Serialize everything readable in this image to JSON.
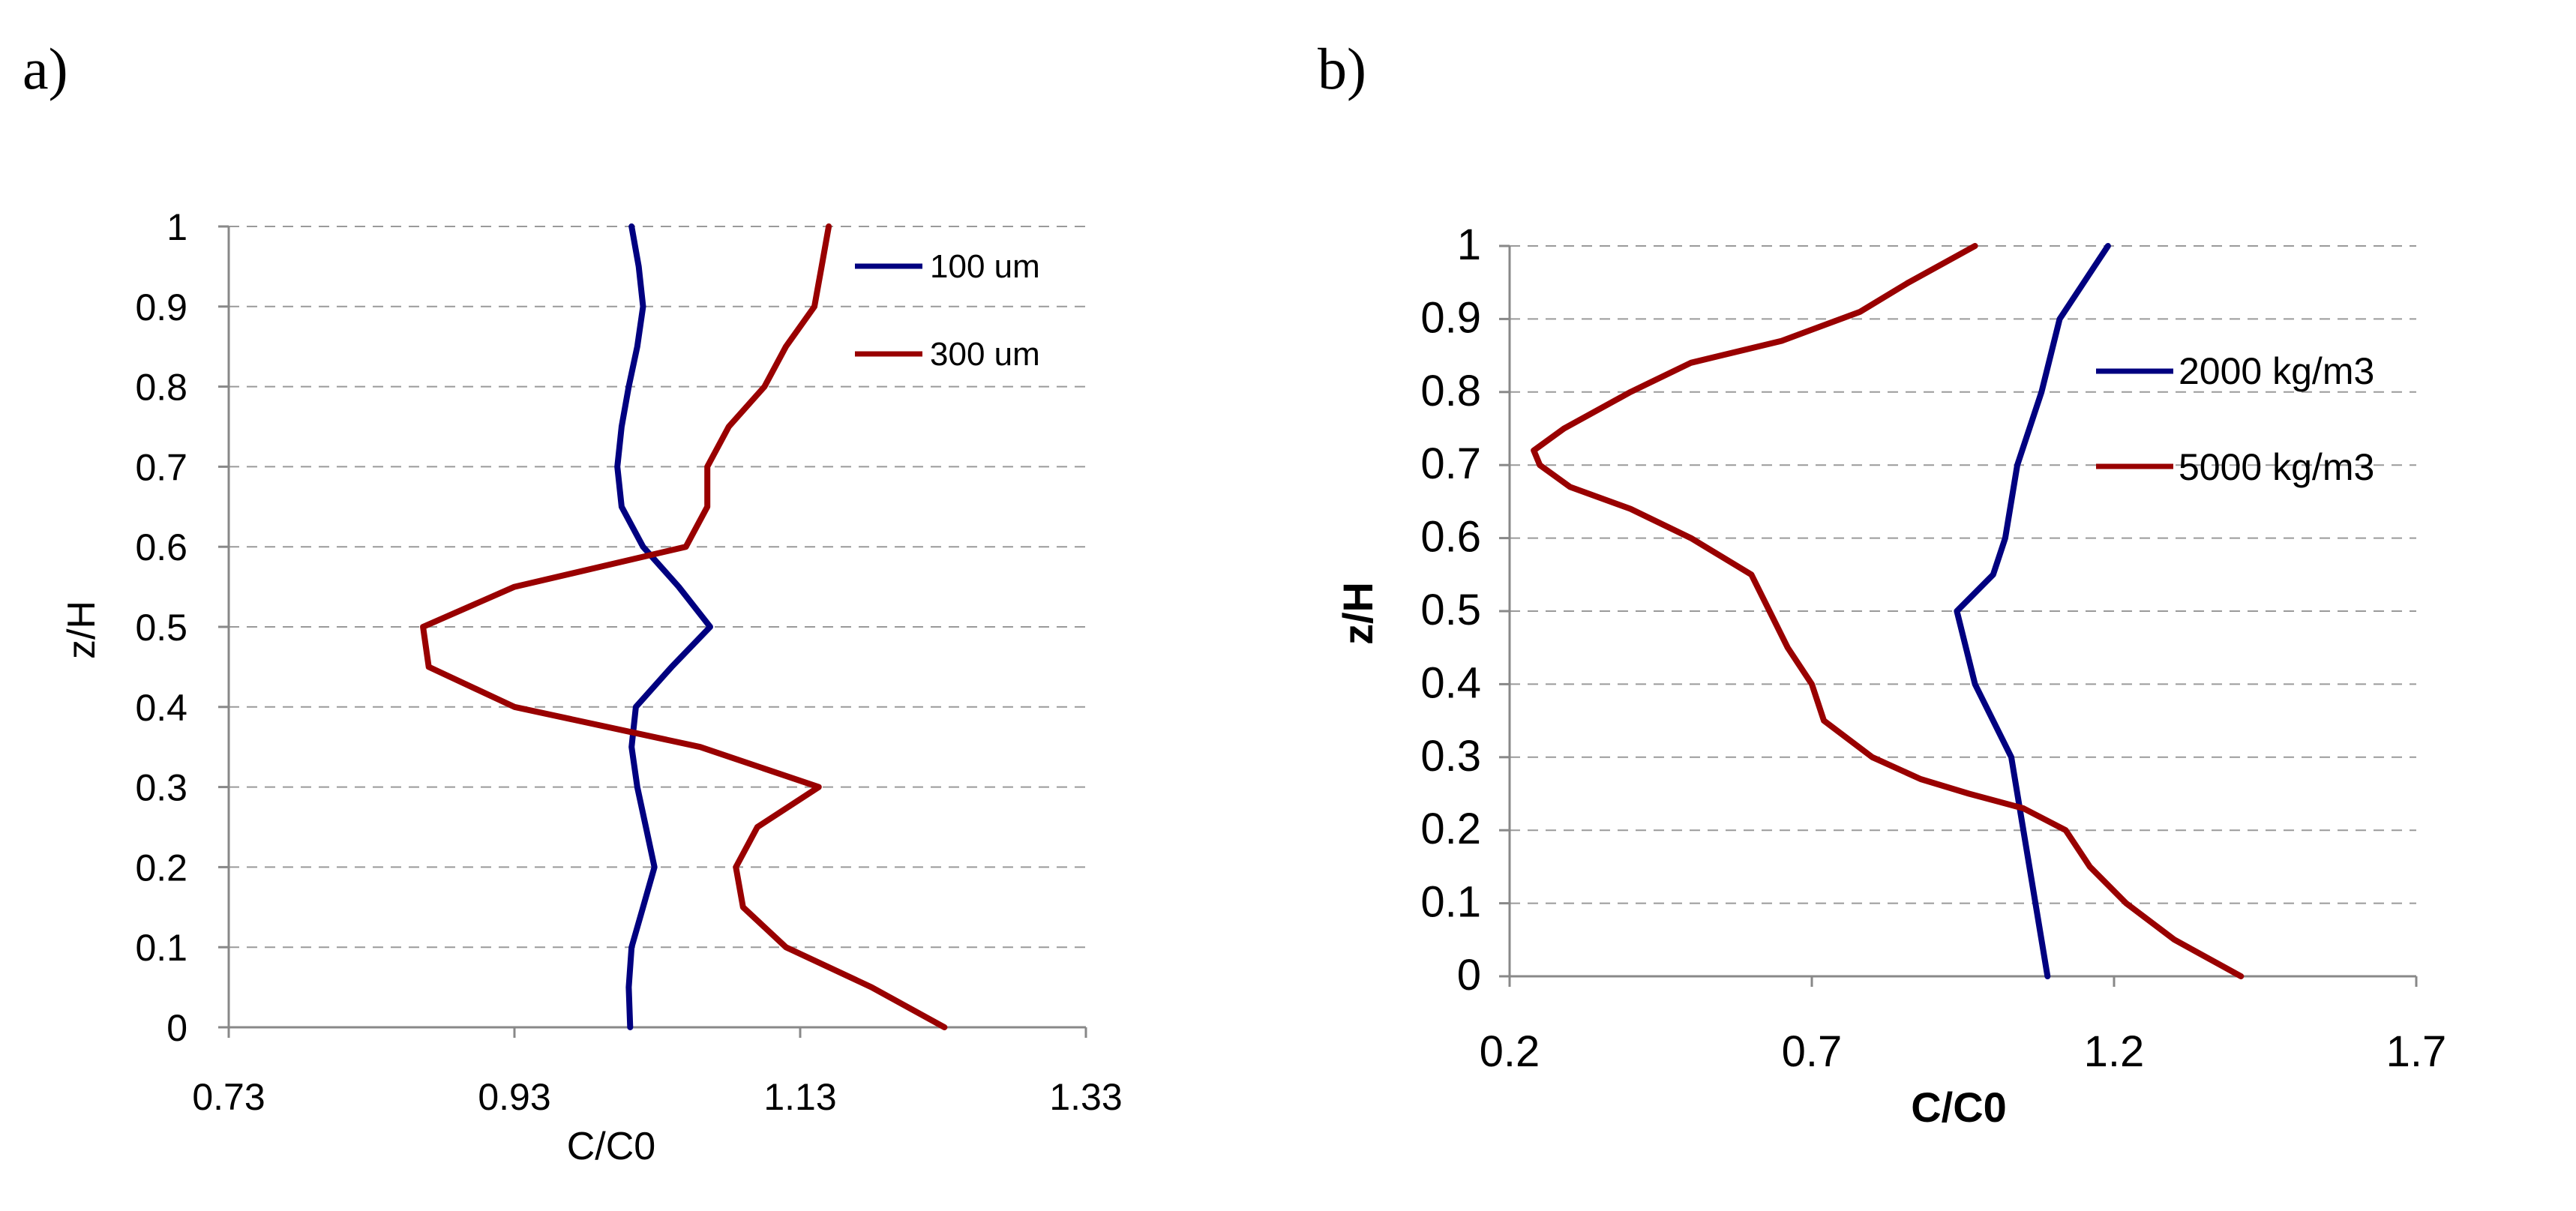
{
  "chart_data": [
    {
      "panel_label": "a)",
      "type": "line",
      "xlabel": "C/C0",
      "ylabel": "z/H",
      "xlim": [
        0.73,
        1.33
      ],
      "ylim": [
        0,
        1
      ],
      "xticks": [
        "0.73",
        "0.93",
        "1.13",
        "1.33"
      ],
      "yticks": [
        "0",
        "0.1",
        "0.2",
        "0.3",
        "0.4",
        "0.5",
        "0.6",
        "0.7",
        "0.8",
        "0.9",
        "1"
      ],
      "grid": "horizontal-dashed",
      "legend_position": "top-right",
      "series": [
        {
          "name": "100 um",
          "color": "#000080",
          "points": [
            [
              1.011,
              0
            ],
            [
              1.01,
              0.05
            ],
            [
              1.012,
              0.1
            ],
            [
              1.02,
              0.15
            ],
            [
              1.028,
              0.2
            ],
            [
              1.022,
              0.25
            ],
            [
              1.016,
              0.3
            ],
            [
              1.012,
              0.35
            ],
            [
              1.015,
              0.4
            ],
            [
              1.04,
              0.45
            ],
            [
              1.067,
              0.5
            ],
            [
              1.045,
              0.55
            ],
            [
              1.02,
              0.6
            ],
            [
              1.005,
              0.65
            ],
            [
              1.002,
              0.7
            ],
            [
              1.005,
              0.75
            ],
            [
              1.01,
              0.8
            ],
            [
              1.016,
              0.85
            ],
            [
              1.02,
              0.9
            ],
            [
              1.017,
              0.95
            ],
            [
              1.012,
              1
            ]
          ]
        },
        {
          "name": "300 um",
          "color": "#990000",
          "points": [
            [
              1.231,
              0
            ],
            [
              1.18,
              0.05
            ],
            [
              1.12,
              0.1
            ],
            [
              1.09,
              0.15
            ],
            [
              1.085,
              0.2
            ],
            [
              1.1,
              0.25
            ],
            [
              1.143,
              0.3
            ],
            [
              1.06,
              0.35
            ],
            [
              0.93,
              0.4
            ],
            [
              0.87,
              0.45
            ],
            [
              0.866,
              0.5
            ],
            [
              0.93,
              0.55
            ],
            [
              1.05,
              0.6
            ],
            [
              1.065,
              0.65
            ],
            [
              1.065,
              0.7
            ],
            [
              1.08,
              0.75
            ],
            [
              1.105,
              0.8
            ],
            [
              1.12,
              0.85
            ],
            [
              1.14,
              0.9
            ],
            [
              1.145,
              0.95
            ],
            [
              1.15,
              1
            ]
          ]
        }
      ]
    },
    {
      "panel_label": "b)",
      "type": "line",
      "xlabel": "C/C0",
      "ylabel": "z/H",
      "xlim": [
        0.2,
        1.7
      ],
      "ylim": [
        0,
        1
      ],
      "xticks": [
        "0.2",
        "0.7",
        "1.2",
        "1.7"
      ],
      "yticks": [
        "0",
        "0.1",
        "0.2",
        "0.3",
        "0.4",
        "0.5",
        "0.6",
        "0.7",
        "0.8",
        "0.9",
        "1"
      ],
      "grid": "horizontal-dashed",
      "legend_position": "right",
      "series": [
        {
          "name": "2000 kg/m3",
          "color": "#000080",
          "points": [
            [
              1.09,
              0
            ],
            [
              1.07,
              0.1
            ],
            [
              1.05,
              0.2
            ],
            [
              1.03,
              0.3
            ],
            [
              0.97,
              0.4
            ],
            [
              0.94,
              0.5
            ],
            [
              1.0,
              0.55
            ],
            [
              1.02,
              0.6
            ],
            [
              1.04,
              0.7
            ],
            [
              1.08,
              0.8
            ],
            [
              1.11,
              0.9
            ],
            [
              1.19,
              1
            ]
          ]
        },
        {
          "name": "5000 kg/m3",
          "color": "#990000",
          "points": [
            [
              1.41,
              0
            ],
            [
              1.3,
              0.05
            ],
            [
              1.22,
              0.1
            ],
            [
              1.16,
              0.15
            ],
            [
              1.12,
              0.2
            ],
            [
              1.05,
              0.23
            ],
            [
              0.96,
              0.25
            ],
            [
              0.88,
              0.27
            ],
            [
              0.8,
              0.3
            ],
            [
              0.72,
              0.35
            ],
            [
              0.7,
              0.4
            ],
            [
              0.66,
              0.45
            ],
            [
              0.6,
              0.55
            ],
            [
              0.5,
              0.6
            ],
            [
              0.4,
              0.64
            ],
            [
              0.3,
              0.67
            ],
            [
              0.25,
              0.7
            ],
            [
              0.24,
              0.72
            ],
            [
              0.29,
              0.75
            ],
            [
              0.4,
              0.8
            ],
            [
              0.5,
              0.84
            ],
            [
              0.65,
              0.87
            ],
            [
              0.78,
              0.91
            ],
            [
              0.86,
              0.95
            ],
            [
              0.97,
              1
            ]
          ]
        }
      ]
    }
  ]
}
